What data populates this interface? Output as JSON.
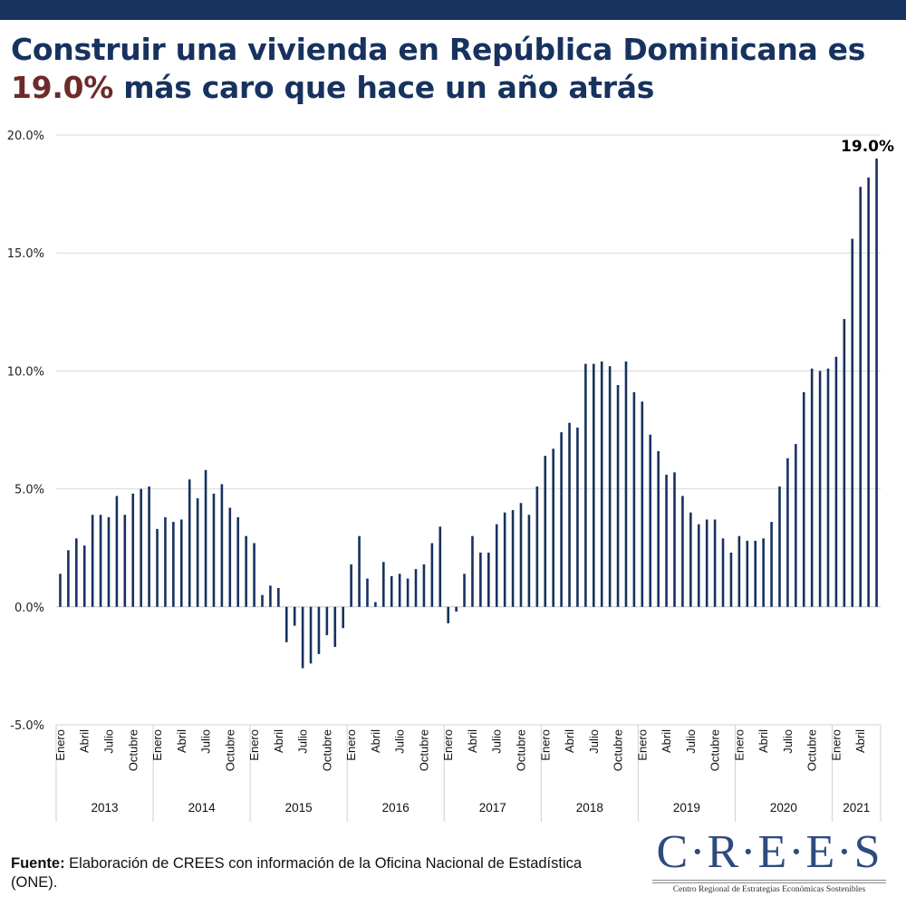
{
  "header": {
    "title_line1": "Construir una vivienda en República Dominicana es",
    "title_highlight": "19.0%",
    "title_line2_rest": " más caro que hace un año atrás",
    "colors": {
      "topbar": "#17325f",
      "title": "#17325f",
      "highlight": "#6e2a2a"
    }
  },
  "footer": {
    "source_label": "Fuente:",
    "source_text": " Elaboración de CREES con información de la Oficina Nacional de Estadística (ONE)."
  },
  "logo": {
    "main": "C·R·E·E·S",
    "subtitle": "Centro Regional de Estrategias Económicas Sostenibles"
  },
  "chart_data": {
    "type": "bar",
    "title": "Construir una vivienda en República Dominicana es 19.0% más caro que hace un año atrás",
    "xlabel": "",
    "ylabel": "",
    "ylim": [
      -5,
      20
    ],
    "yticks": [
      -5,
      0,
      5,
      10,
      15,
      20
    ],
    "ytick_labels": [
      "-5.0%",
      "0.0%",
      "5.0%",
      "10.0%",
      "15.0%",
      "20.0%"
    ],
    "grid": true,
    "bar_color": "#17325f",
    "month_labels_shown": [
      "Enero",
      "Abril",
      "Julio",
      "Octubre"
    ],
    "years": [
      {
        "year": "2013",
        "values": [
          1.4,
          2.4,
          2.9,
          2.6,
          3.9,
          3.9,
          3.8,
          4.7,
          3.9,
          4.8,
          5.0,
          5.1
        ]
      },
      {
        "year": "2014",
        "values": [
          3.3,
          3.8,
          3.6,
          3.7,
          5.4,
          4.6,
          5.8,
          4.8,
          5.2,
          4.2,
          3.8,
          3.0
        ]
      },
      {
        "year": "2015",
        "values": [
          2.7,
          0.5,
          0.9,
          0.8,
          -1.5,
          -0.8,
          -2.6,
          -2.4,
          -2.0,
          -1.2,
          -1.7,
          -0.9
        ]
      },
      {
        "year": "2016",
        "values": [
          1.8,
          3.0,
          1.2,
          0.2,
          1.9,
          1.3,
          1.4,
          1.2,
          1.6,
          1.8,
          2.7,
          3.4
        ]
      },
      {
        "year": "2017",
        "values": [
          -0.7,
          -0.2,
          1.4,
          3.0,
          2.3,
          2.3,
          3.5,
          4.0,
          4.1,
          4.4,
          3.9,
          5.1
        ]
      },
      {
        "year": "2018",
        "values": [
          6.4,
          6.7,
          7.4,
          7.8,
          7.6,
          10.3,
          10.3,
          10.4,
          10.2,
          9.4,
          10.4,
          9.1
        ]
      },
      {
        "year": "2019",
        "values": [
          8.7,
          7.3,
          6.6,
          5.6,
          5.7,
          4.7,
          4.0,
          3.5,
          3.7,
          3.7,
          2.9,
          2.3
        ]
      },
      {
        "year": "2020",
        "values": [
          3.0,
          2.8,
          2.8,
          2.9,
          3.6,
          5.1,
          6.3,
          6.9,
          9.1,
          10.1,
          10.0,
          10.1
        ]
      },
      {
        "year": "2021",
        "values": [
          10.6,
          12.2,
          15.6,
          17.8,
          18.2,
          19.0
        ]
      }
    ],
    "annotations": [
      {
        "target": "last",
        "text": "19.0%"
      }
    ]
  }
}
